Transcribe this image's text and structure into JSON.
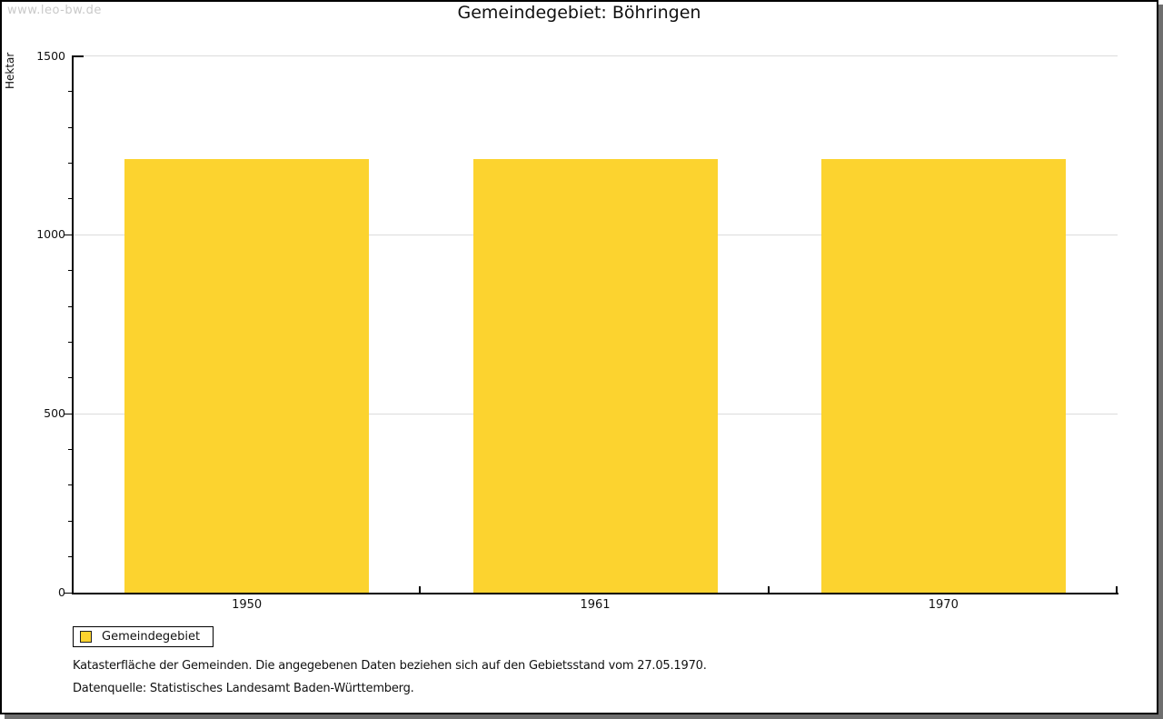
{
  "page": {
    "watermark": "www.leo-bw.de"
  },
  "chart_data": {
    "type": "bar",
    "title": "Gemeindegebiet: Böhringen",
    "categories": [
      "1950",
      "1961",
      "1970"
    ],
    "series": [
      {
        "name": "Gemeindegebiet",
        "values": [
          1211,
          1211,
          1211
        ]
      }
    ],
    "xlabel": "",
    "ylabel": "Hektar",
    "ylim": [
      0,
      1500
    ],
    "ytick_major": [
      0,
      500,
      1000,
      1500
    ],
    "ytick_minor_step": 100,
    "grid": true,
    "legend_position": "bottom-left",
    "bar_color": "#fcd32f"
  },
  "legend": {
    "label": "Gemeindegebiet",
    "swatch_color": "#fcd32f"
  },
  "footnotes": {
    "line1": "Katasterfläche der Gemeinden. Die angegebenen Daten beziehen sich auf den Gebietsstand vom 27.05.1970.",
    "line2": "Datenquelle: Statistisches Landesamt Baden-Württemberg."
  },
  "colors": {
    "bar": "#fcd32f",
    "gridline": "#dcdcdc",
    "axis": "#000000",
    "watermark": "#c9c9c9",
    "frame_shadow": "#6e6e6e"
  }
}
